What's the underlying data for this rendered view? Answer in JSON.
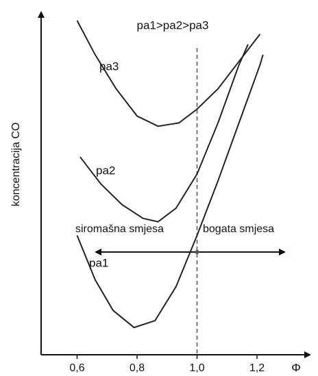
{
  "chart_data": {
    "type": "line",
    "title": "pa1>pa2>pa3",
    "x_label": "Φ",
    "y_label": "koncentracija CO",
    "annotations": [
      "siromašna smjesa",
      "bogata smjesa"
    ],
    "vline": 1.0,
    "xlim": [
      0.48,
      1.36
    ],
    "xticks": [
      {
        "value": 0.6,
        "label": "0,6"
      },
      {
        "value": 0.8,
        "label": "0,8"
      },
      {
        "value": 1.0,
        "label": "1,0"
      },
      {
        "value": 1.2,
        "label": "1,2"
      }
    ],
    "ylim": [
      0,
      100
    ],
    "yticks": [],
    "series": [
      {
        "name": "pa3",
        "color": "#222222",
        "x": [
          0.6,
          0.66,
          0.73,
          0.8,
          0.87,
          0.94,
          1.0,
          1.07,
          1.14,
          1.21
        ],
        "values": [
          98,
          88,
          78,
          70,
          67,
          68,
          72,
          78,
          86,
          94
        ]
      },
      {
        "name": "pa2",
        "color": "#222222",
        "x": [
          0.61,
          0.68,
          0.75,
          0.82,
          0.87,
          0.93,
          1.0,
          1.07,
          1.14,
          1.17
        ],
        "values": [
          58,
          50,
          44,
          40,
          39,
          43,
          53,
          68,
          85,
          91
        ]
      },
      {
        "name": "pa1",
        "color": "#222222",
        "x": [
          0.6,
          0.66,
          0.72,
          0.79,
          0.86,
          0.93,
          1.0,
          1.07,
          1.14,
          1.21,
          1.22
        ],
        "values": [
          35,
          22,
          13,
          8,
          10,
          20,
          35,
          51,
          68,
          85,
          88
        ]
      }
    ]
  }
}
